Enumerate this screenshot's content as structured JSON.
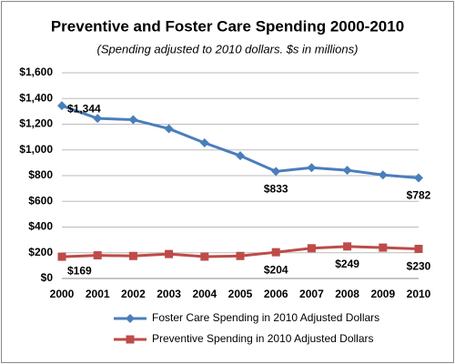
{
  "chart_data": {
    "type": "line",
    "title": "Preventive and Foster Care Spending 2000-2010",
    "subtitle": "(Spending adjusted to 2010 dollars. $s in millions)",
    "categories": [
      "2000",
      "2001",
      "2002",
      "2003",
      "2004",
      "2005",
      "2006",
      "2007",
      "2008",
      "2009",
      "2010"
    ],
    "series": [
      {
        "name": "Foster Care Spending in 2010 Adjusted Dollars",
        "color": "#4a7ebb",
        "marker": "diamond",
        "values": [
          1344,
          1245,
          1235,
          1165,
          1055,
          955,
          833,
          862,
          842,
          805,
          782
        ],
        "value_labels": [
          "$1,344",
          null,
          null,
          null,
          null,
          null,
          "$833",
          null,
          null,
          null,
          "$782"
        ]
      },
      {
        "name": "Preventive Spending in 2010 Adjusted Dollars",
        "color": "#be4b48",
        "marker": "square",
        "values": [
          169,
          180,
          175,
          190,
          170,
          175,
          204,
          235,
          249,
          240,
          230
        ],
        "value_labels": [
          "$169",
          null,
          null,
          null,
          null,
          null,
          "$204",
          null,
          "$249",
          null,
          "$230"
        ]
      }
    ],
    "ylim": [
      0,
      1600
    ],
    "yticks": [
      {
        "value": 0,
        "label": "$0"
      },
      {
        "value": 200,
        "label": "$200"
      },
      {
        "value": 400,
        "label": "$400"
      },
      {
        "value": 600,
        "label": "$600"
      },
      {
        "value": 800,
        "label": "$800"
      },
      {
        "value": 1000,
        "label": "$1,000"
      },
      {
        "value": 1200,
        "label": "$1,200"
      },
      {
        "value": 1400,
        "label": "$1,400"
      },
      {
        "value": 1600,
        "label": "$1,600"
      }
    ],
    "grid": true,
    "legend": "bottom"
  }
}
